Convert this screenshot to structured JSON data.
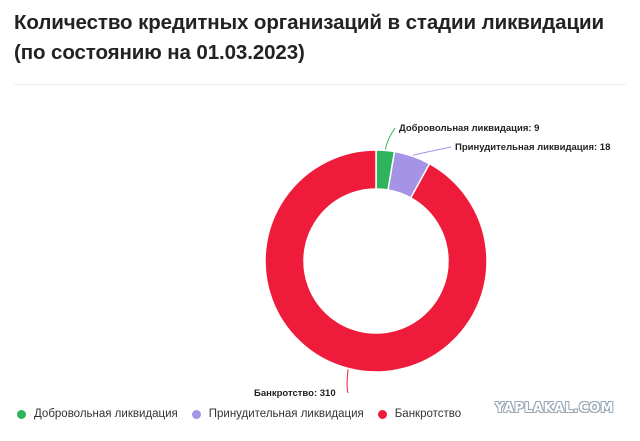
{
  "title": "Количество кредитных организаций в стадии ликвидации (по состоянию на 01.03.2023)",
  "watermark": "YAPLAKAL.COM",
  "chart_data": {
    "type": "pie",
    "donut": true,
    "categories": [
      "Добровольная ликвидация",
      "Принудительная ликвидация",
      "Банкротство"
    ],
    "values": [
      9,
      18,
      310
    ],
    "colors": [
      "#2db35a",
      "#a593e6",
      "#ee1c3a"
    ],
    "data_labels": [
      "Добровольная ликвидация: 9",
      "Принудительная ликвидация: 18",
      "Банкротство: 310"
    ],
    "legend": "bottom-left"
  }
}
